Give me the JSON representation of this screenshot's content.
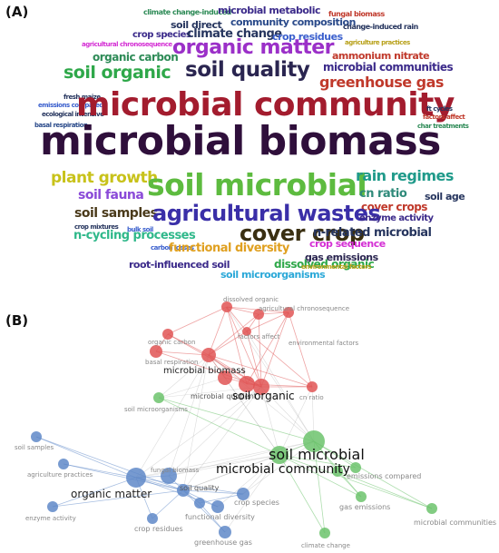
{
  "panels": {
    "a_label": "(A)",
    "b_label": "(B)"
  },
  "word_cloud": {
    "words": [
      {
        "text": "climate change-induced",
        "color": "#2e8b57",
        "size": 8
      },
      {
        "text": "microbial metabolic",
        "color": "#3b2a8a",
        "size": 11
      },
      {
        "text": "fungal biomass",
        "color": "#c0392b",
        "size": 8
      },
      {
        "text": "soil direct",
        "color": "#26355e",
        "size": 11
      },
      {
        "text": "community composition",
        "color": "#2a4a8a",
        "size": 11
      },
      {
        "text": "change-induced rain",
        "color": "#26355e",
        "size": 8
      },
      {
        "text": "crop species",
        "color": "#3b2a8a",
        "size": 10
      },
      {
        "text": "climate change",
        "color": "#26355e",
        "size": 13
      },
      {
        "text": "crop residues",
        "color": "#3a5fcd",
        "size": 11
      },
      {
        "text": "agricultural chronosequence",
        "color": "#d42fd4",
        "size": 7
      },
      {
        "text": "organic matter",
        "color": "#9b30c8",
        "size": 22
      },
      {
        "text": "agriculture practices",
        "color": "#b8a11a",
        "size": 7
      },
      {
        "text": "organic carbon",
        "color": "#2e8b57",
        "size": 12
      },
      {
        "text": "ammonium nitrate",
        "color": "#c0392b",
        "size": 11
      },
      {
        "text": "soil organic",
        "color": "#2fa84a",
        "size": 19
      },
      {
        "text": "soil quality",
        "color": "#2a2550",
        "size": 23
      },
      {
        "text": "microbial communities",
        "color": "#3b2a8a",
        "size": 12
      },
      {
        "text": "greenhouse gas",
        "color": "#c0392b",
        "size": 16
      },
      {
        "text": "fresh maize",
        "color": "#26355e",
        "size": 7
      },
      {
        "text": "emissions compared",
        "color": "#3a5fcd",
        "size": 7
      },
      {
        "text": "ecological intensive",
        "color": "#26355e",
        "size": 7
      },
      {
        "text": "basal respiration",
        "color": "#2a4a8a",
        "size": 7
      },
      {
        "text": "microbial community",
        "color": "#a31c2e",
        "size": 36
      },
      {
        "text": "ft cycles",
        "color": "#26355e",
        "size": 7
      },
      {
        "text": "factors affect",
        "color": "#c0392b",
        "size": 7
      },
      {
        "text": "char treatments",
        "color": "#2e8b57",
        "size": 7
      },
      {
        "text": "microbial biomass",
        "color": "#2f0f3b",
        "size": 44
      },
      {
        "text": "plant growth",
        "color": "#c8c21a",
        "size": 17
      },
      {
        "text": "soil microbial",
        "color": "#5dbb3f",
        "size": 33
      },
      {
        "text": "rain regimes",
        "color": "#1f9a8a",
        "size": 16
      },
      {
        "text": "cn ratio",
        "color": "#2f8a7a",
        "size": 13
      },
      {
        "text": "soil age",
        "color": "#26355e",
        "size": 11
      },
      {
        "text": "soil fauna",
        "color": "#8a4ad8",
        "size": 14
      },
      {
        "text": "cover crops",
        "color": "#c0392b",
        "size": 12
      },
      {
        "text": "soil samples",
        "color": "#4a3a1a",
        "size": 14
      },
      {
        "text": "agricultural wastes",
        "color": "#3a2fa8",
        "size": 24
      },
      {
        "text": "enzyme activity",
        "color": "#3b2a8a",
        "size": 10
      },
      {
        "text": "crop mixtures",
        "color": "#26355e",
        "size": 7
      },
      {
        "text": "bulk soil",
        "color": "#3a5fcd",
        "size": 7
      },
      {
        "text": "cover crop",
        "color": "#3a2f12",
        "size": 24
      },
      {
        "text": "n-related microbial",
        "color": "#26355e",
        "size": 13
      },
      {
        "text": "n-cycling processes",
        "color": "#2fb88a",
        "size": 13
      },
      {
        "text": "crop sequence",
        "color": "#d42fd4",
        "size": 11
      },
      {
        "text": "carbon losses",
        "color": "#3a5fcd",
        "size": 7
      },
      {
        "text": "functional diversity",
        "color": "#e0a020",
        "size": 13
      },
      {
        "text": "gas emissions",
        "color": "#2a2550",
        "size": 11
      },
      {
        "text": "root-influenced soil",
        "color": "#3b2a8a",
        "size": 11
      },
      {
        "text": "dissolved organic",
        "color": "#2fa84a",
        "size": 12
      },
      {
        "text": "environmental factors",
        "color": "#b8a11a",
        "size": 7
      },
      {
        "text": "soil microorganisms",
        "color": "#2aa8d8",
        "size": 11
      }
    ]
  },
  "network": {
    "colors": {
      "red": "#e05555",
      "green": "#6cc36c",
      "blue": "#5f88c8",
      "gray": "#9a9a9a"
    },
    "nodes": [
      {
        "id": "dissolved_organic",
        "label": "dissolved organic",
        "cluster": "red"
      },
      {
        "id": "agri_chrono",
        "label": "agricultural chronosequence",
        "cluster": "red"
      },
      {
        "id": "factors_affect",
        "label": "factors affect",
        "cluster": "red"
      },
      {
        "id": "env_factors",
        "label": "environmental factors",
        "cluster": "red"
      },
      {
        "id": "organic_carbon",
        "label": "organic carbon",
        "cluster": "red"
      },
      {
        "id": "basal_resp",
        "label": "basal respiration",
        "cluster": "red"
      },
      {
        "id": "microbial_biomass",
        "label": "microbial biomass",
        "cluster": "red"
      },
      {
        "id": "microbial_q",
        "label": "microbial quotient",
        "cluster": "red"
      },
      {
        "id": "soil_organic",
        "label": "soil organic",
        "cluster": "red"
      },
      {
        "id": "cn_ratio",
        "label": "cn ratio",
        "cluster": "red"
      },
      {
        "id": "red_a",
        "label": "",
        "cluster": "red"
      },
      {
        "id": "soil_microorg",
        "label": "soil microorganisms",
        "cluster": "green"
      },
      {
        "id": "soil_microbial",
        "label": "soil microbial",
        "cluster": "green"
      },
      {
        "id": "microbial_community",
        "label": "microbial community",
        "cluster": "green"
      },
      {
        "id": "emissions_compared",
        "label": "emissions compared",
        "cluster": "green"
      },
      {
        "id": "gas_emissions",
        "label": "gas emissions",
        "cluster": "green"
      },
      {
        "id": "climate_change",
        "label": "climate change",
        "cluster": "green"
      },
      {
        "id": "microbial_communities",
        "label": "microbial communities",
        "cluster": "green"
      },
      {
        "id": "green_a",
        "label": "",
        "cluster": "green"
      },
      {
        "id": "soil_samples",
        "label": "soil samples",
        "cluster": "blue"
      },
      {
        "id": "agri_practices",
        "label": "agriculture practices",
        "cluster": "blue"
      },
      {
        "id": "fungal_biomass",
        "label": "fungal biomass",
        "cluster": "blue"
      },
      {
        "id": "organic_matter",
        "label": "organic matter",
        "cluster": "blue"
      },
      {
        "id": "soil_quality",
        "label": "soil quality",
        "cluster": "blue"
      },
      {
        "id": "crop_species",
        "label": "crop species",
        "cluster": "blue"
      },
      {
        "id": "enzyme_activity",
        "label": "enzyme activity",
        "cluster": "blue"
      },
      {
        "id": "crop_residues",
        "label": "crop residues",
        "cluster": "blue"
      },
      {
        "id": "functional_diversity",
        "label": "functional diversity",
        "cluster": "blue"
      },
      {
        "id": "greenhouse_gas",
        "label": "greenhouse gas",
        "cluster": "blue"
      },
      {
        "id": "blue_a",
        "label": "",
        "cluster": "blue"
      }
    ]
  }
}
